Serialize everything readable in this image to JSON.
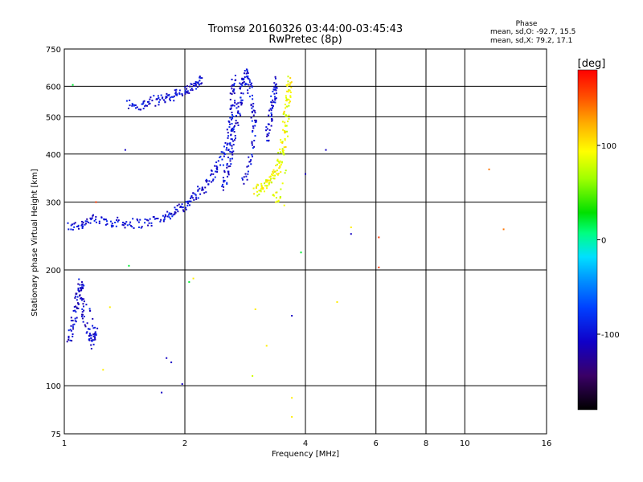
{
  "chart_data": {
    "type": "scatter",
    "title": "Tromsø 20160326 03:44:00-03:45:43",
    "subtitle": "RwPretec (8p)",
    "xlabel": "Frequency [MHz]",
    "ylabel": "Stationary phase Virtual Height [km]",
    "x_scale": "log",
    "y_scale": "log",
    "xlim": [
      1,
      16
    ],
    "ylim": [
      75,
      750
    ],
    "grid": true,
    "x_ticks": [
      1,
      2,
      4,
      6,
      8,
      10,
      16
    ],
    "x_tick_labels": [
      "1",
      "2",
      "4",
      "6",
      "8",
      "10",
      "16"
    ],
    "y_ticks": [
      75,
      100,
      200,
      300,
      400,
      500,
      600,
      750
    ],
    "y_tick_labels": [
      "75",
      "100",
      "200",
      "300",
      "400",
      "500",
      "600",
      "750"
    ],
    "stats": {
      "heading": "Phase",
      "line_o": "mean, sd,O: -92.7, 15.5",
      "line_x": "mean, sd,X: 79.2, 17.1"
    },
    "colorbar": {
      "label": "[deg]",
      "range": [
        -180,
        180
      ],
      "ticks": [
        100,
        0,
        -100
      ],
      "tick_labels": [
        "100",
        "0",
        "-100"
      ]
    },
    "echo_traces": [
      {
        "name_hidden": true,
        "phase_deg": -100,
        "points": [
          [
            1.02,
            258
          ],
          [
            1.1,
            262
          ],
          [
            1.15,
            270
          ],
          [
            1.25,
            268
          ],
          [
            1.35,
            266
          ],
          [
            1.45,
            264
          ],
          [
            1.6,
            265
          ],
          [
            1.75,
            272
          ],
          [
            1.85,
            280
          ],
          [
            1.95,
            290
          ],
          [
            2.05,
            300
          ],
          [
            2.15,
            315
          ],
          [
            2.25,
            330
          ],
          [
            2.35,
            355
          ],
          [
            2.45,
            380
          ],
          [
            2.55,
            420
          ],
          [
            2.6,
            470
          ],
          [
            2.62,
            520
          ],
          [
            2.64,
            580
          ],
          [
            2.66,
            640
          ]
        ]
      },
      {
        "name_hidden": true,
        "phase_deg": -100,
        "points": [
          [
            1.45,
            540
          ],
          [
            1.55,
            530
          ],
          [
            1.65,
            548
          ],
          [
            1.75,
            555
          ],
          [
            1.85,
            565
          ],
          [
            1.95,
            575
          ],
          [
            2.05,
            590
          ],
          [
            2.15,
            605
          ],
          [
            2.2,
            620
          ]
        ]
      },
      {
        "name_hidden": true,
        "phase_deg": -105,
        "points": [
          [
            1.03,
            130
          ],
          [
            1.05,
            145
          ],
          [
            1.07,
            160
          ],
          [
            1.09,
            175
          ],
          [
            1.1,
            185
          ],
          [
            1.12,
            150
          ],
          [
            1.15,
            135
          ],
          [
            1.18,
            128
          ],
          [
            1.2,
            140
          ],
          [
            1.08,
            190
          ]
        ]
      },
      {
        "name_hidden": true,
        "phase_deg": -100,
        "points": [
          [
            2.5,
            330
          ],
          [
            2.55,
            360
          ],
          [
            2.6,
            400
          ],
          [
            2.65,
            450
          ],
          [
            2.7,
            500
          ],
          [
            2.75,
            560
          ],
          [
            2.8,
            620
          ],
          [
            2.85,
            650
          ],
          [
            2.9,
            600
          ],
          [
            2.95,
            520
          ],
          [
            3.0,
            460
          ],
          [
            2.9,
            380
          ],
          [
            2.8,
            340
          ]
        ]
      },
      {
        "name_hidden": true,
        "phase_deg": 90,
        "points": [
          [
            3.0,
            320
          ],
          [
            3.1,
            325
          ],
          [
            3.2,
            335
          ],
          [
            3.3,
            345
          ],
          [
            3.4,
            360
          ],
          [
            3.45,
            380
          ],
          [
            3.5,
            420
          ],
          [
            3.55,
            470
          ],
          [
            3.6,
            520
          ],
          [
            3.62,
            580
          ],
          [
            3.65,
            630
          ],
          [
            3.5,
            300
          ],
          [
            3.3,
            315
          ]
        ]
      },
      {
        "name_hidden": true,
        "phase_deg": -100,
        "points": [
          [
            3.2,
            430
          ],
          [
            3.25,
            480
          ],
          [
            3.3,
            530
          ],
          [
            3.35,
            580
          ],
          [
            3.4,
            620
          ]
        ]
      }
    ],
    "scattered_points": [
      {
        "x": 1.8,
        "y": 118,
        "phase_deg": -110
      },
      {
        "x": 1.85,
        "y": 115,
        "phase_deg": -110
      },
      {
        "x": 1.75,
        "y": 96,
        "phase_deg": -110
      },
      {
        "x": 1.97,
        "y": 101,
        "phase_deg": -110
      },
      {
        "x": 1.42,
        "y": 410,
        "phase_deg": -110
      },
      {
        "x": 4.5,
        "y": 410,
        "phase_deg": -110
      },
      {
        "x": 4.0,
        "y": 355,
        "phase_deg": -110
      },
      {
        "x": 5.2,
        "y": 248,
        "phase_deg": -110
      },
      {
        "x": 3.7,
        "y": 152,
        "phase_deg": -110
      },
      {
        "x": 1.3,
        "y": 160,
        "phase_deg": 100
      },
      {
        "x": 1.25,
        "y": 110,
        "phase_deg": 100
      },
      {
        "x": 2.1,
        "y": 190,
        "phase_deg": 100
      },
      {
        "x": 3.0,
        "y": 158,
        "phase_deg": 100
      },
      {
        "x": 3.2,
        "y": 127,
        "phase_deg": 100
      },
      {
        "x": 4.8,
        "y": 165,
        "phase_deg": 100
      },
      {
        "x": 3.7,
        "y": 83,
        "phase_deg": 100
      },
      {
        "x": 3.7,
        "y": 93,
        "phase_deg": 100
      },
      {
        "x": 5.2,
        "y": 258,
        "phase_deg": 100
      },
      {
        "x": 12.5,
        "y": 255,
        "phase_deg": 140
      },
      {
        "x": 11.5,
        "y": 365,
        "phase_deg": 140
      },
      {
        "x": 6.1,
        "y": 243,
        "phase_deg": 160
      },
      {
        "x": 6.1,
        "y": 203,
        "phase_deg": 160
      },
      {
        "x": 3.9,
        "y": 222,
        "phase_deg": 20
      },
      {
        "x": 2.05,
        "y": 186,
        "phase_deg": 20
      },
      {
        "x": 1.05,
        "y": 605,
        "phase_deg": 20
      },
      {
        "x": 1.45,
        "y": 205,
        "phase_deg": 20
      },
      {
        "x": 1.2,
        "y": 300,
        "phase_deg": 160
      },
      {
        "x": 2.95,
        "y": 106,
        "phase_deg": 80
      }
    ],
    "colors": {
      "grid": "#000000",
      "background": "#ffffff"
    }
  }
}
